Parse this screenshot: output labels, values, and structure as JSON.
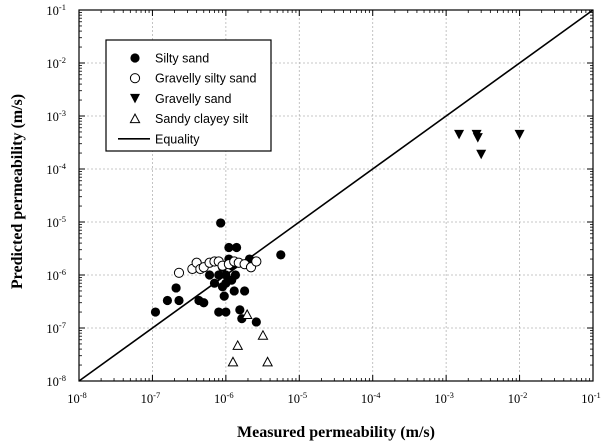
{
  "chart_data": {
    "type": "scatter",
    "xlabel": "Measured permeability (m/s)",
    "ylabel": "Predicted permeability (m/s)",
    "x_scale": "log",
    "y_scale": "log",
    "xlim": [
      1e-08,
      0.1
    ],
    "ylim": [
      1e-08,
      0.1
    ],
    "x_ticks": [
      {
        "base": "10",
        "exp": "-8",
        "value": 1e-08
      },
      {
        "base": "10",
        "exp": "-7",
        "value": 1e-07
      },
      {
        "base": "10",
        "exp": "-6",
        "value": 1e-06
      },
      {
        "base": "10",
        "exp": "-5",
        "value": 1e-05
      },
      {
        "base": "10",
        "exp": "-4",
        "value": 0.0001
      },
      {
        "base": "10",
        "exp": "-3",
        "value": 0.001
      },
      {
        "base": "10",
        "exp": "-2",
        "value": 0.01
      },
      {
        "base": "10",
        "exp": "-1",
        "value": 0.1
      }
    ],
    "y_ticks": [
      {
        "base": "10",
        "exp": "-8",
        "value": 1e-08
      },
      {
        "base": "10",
        "exp": "-7",
        "value": 1e-07
      },
      {
        "base": "10",
        "exp": "-6",
        "value": 1e-06
      },
      {
        "base": "10",
        "exp": "-5",
        "value": 1e-05
      },
      {
        "base": "10",
        "exp": "-4",
        "value": 0.0001
      },
      {
        "base": "10",
        "exp": "-3",
        "value": 0.001
      },
      {
        "base": "10",
        "exp": "-2",
        "value": 0.01
      },
      {
        "base": "10",
        "exp": "-1",
        "value": 0.1
      }
    ],
    "grid": true,
    "legend_position": "top-left",
    "series": [
      {
        "name": "Silty sand",
        "marker": "filled-circle",
        "points": [
          [
            1.1e-07,
            2e-07
          ],
          [
            1.6e-07,
            3.3e-07
          ],
          [
            2.1e-07,
            5.7e-07
          ],
          [
            2.3e-07,
            3.3e-07
          ],
          [
            4.3e-07,
            3.3e-07
          ],
          [
            5e-07,
            3e-07
          ],
          [
            6e-07,
            1e-06
          ],
          [
            7e-07,
            7e-07
          ],
          [
            8e-07,
            1e-06
          ],
          [
            8.5e-07,
            9.6e-06
          ],
          [
            8e-07,
            2e-07
          ],
          [
            9e-07,
            6e-07
          ],
          [
            9.5e-07,
            4e-07
          ],
          [
            1e-06,
            1e-06
          ],
          [
            1e-06,
            2e-07
          ],
          [
            1.1e-06,
            3.3e-06
          ],
          [
            1.1e-06,
            2e-06
          ],
          [
            1.2e-06,
            1.5e-06
          ],
          [
            1.2e-06,
            8e-07
          ],
          [
            1.3e-06,
            5e-07
          ],
          [
            1.35e-06,
            1e-06
          ],
          [
            1.4e-06,
            3.3e-06
          ],
          [
            1.55e-06,
            2.2e-07
          ],
          [
            1.65e-06,
            1.5e-07
          ],
          [
            1.8e-06,
            5e-07
          ],
          [
            2.1e-06,
            2e-06
          ],
          [
            2.6e-06,
            1.3e-07
          ],
          [
            5.6e-06,
            2.4e-06
          ],
          [
            1e-06,
            7e-07
          ],
          [
            9e-07,
            1.4e-06
          ]
        ]
      },
      {
        "name": "Gravelly silty sand",
        "marker": "open-circle",
        "points": [
          [
            2.3e-07,
            1.1e-06
          ],
          [
            3.5e-07,
            1.3e-06
          ],
          [
            4e-07,
            1.7e-06
          ],
          [
            4.5e-07,
            1.3e-06
          ],
          [
            5e-07,
            1.4e-06
          ],
          [
            6e-07,
            1.7e-06
          ],
          [
            7e-07,
            1.8e-06
          ],
          [
            8e-07,
            1.8e-06
          ],
          [
            9e-07,
            1.5e-06
          ],
          [
            1.1e-06,
            1.6e-06
          ],
          [
            1.3e-06,
            1.8e-06
          ],
          [
            1.5e-06,
            1.7e-06
          ],
          [
            1.8e-06,
            1.6e-06
          ],
          [
            2.2e-06,
            1.4e-06
          ],
          [
            2.6e-06,
            1.8e-06
          ]
        ]
      },
      {
        "name": "Gravelly sand",
        "marker": "filled-triangle-down",
        "points": [
          [
            0.0015,
            0.00045
          ],
          [
            0.0026,
            0.00045
          ],
          [
            0.0027,
            0.00039
          ],
          [
            0.003,
            0.00019
          ],
          [
            0.01,
            0.00045
          ]
        ]
      },
      {
        "name": "Sandy clayey silt",
        "marker": "open-triangle-up",
        "points": [
          [
            1.25e-06,
            2.3e-08
          ],
          [
            1.45e-06,
            4.7e-08
          ],
          [
            1.95e-06,
            1.8e-07
          ],
          [
            3.2e-06,
            7.3e-08
          ],
          [
            3.7e-06,
            2.3e-08
          ]
        ]
      }
    ],
    "reference_line": {
      "name": "Equality",
      "from": [
        1e-08,
        1e-08
      ],
      "to": [
        0.1,
        0.1
      ]
    }
  }
}
